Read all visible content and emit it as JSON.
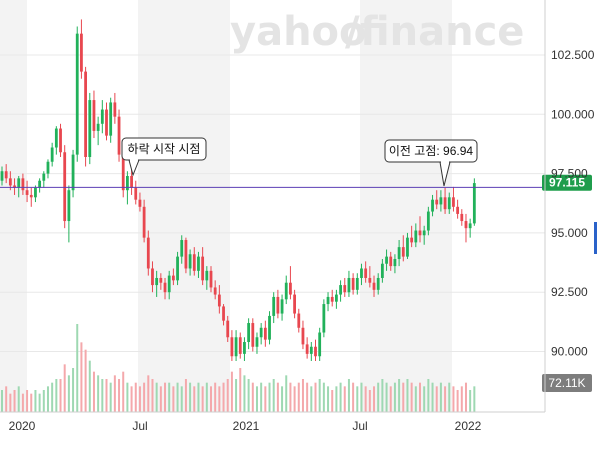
{
  "watermark": {
    "text_main": "yahoo",
    "text_slash": "/",
    "text_tail": "finance"
  },
  "colors": {
    "up": "#21b15a",
    "down": "#e8474f",
    "vol_up": "#9ed8b2",
    "vol_down": "#f4a8ab",
    "reference_line": "#5b3fb5",
    "price_tag": "#1f9d4c",
    "vol_tag": "#7d7d7d",
    "shade": "#f3f3f3",
    "side_marker": "#2a62c9"
  },
  "chart_data": {
    "type": "candlestick",
    "x_ticks": [
      "2020",
      "Jul",
      "2021",
      "Jul",
      "2022"
    ],
    "y_ticks": [
      "102.500",
      "100.000",
      "97.500",
      "95.000",
      "92.500",
      "90.000"
    ],
    "y_tick_values": [
      102.5,
      100.0,
      97.5,
      95.0,
      92.5,
      90.0
    ],
    "ylim": [
      88.7,
      104.7
    ],
    "last_price": 97.115,
    "last_price_label": "97.115",
    "reference_line_value": 96.94,
    "volume_label": "72.11K",
    "annotations": [
      {
        "text": "하락 시작 시점",
        "x_index": 29,
        "y": 97.2
      },
      {
        "text": "이전 고점: 96.94",
        "x_index": 108,
        "y": 96.94
      }
    ],
    "candles_start": "2019-11",
    "candles": [
      [
        97.2,
        97.8,
        97.0,
        97.6
      ],
      [
        97.6,
        97.9,
        97.1,
        97.3
      ],
      [
        97.3,
        97.6,
        96.8,
        97.0
      ],
      [
        97.0,
        97.3,
        96.6,
        96.9
      ],
      [
        96.9,
        97.4,
        96.5,
        97.3
      ],
      [
        97.3,
        97.5,
        96.6,
        96.8
      ],
      [
        96.8,
        97.2,
        96.3,
        96.6
      ],
      [
        96.6,
        96.9,
        96.1,
        96.5
      ],
      [
        96.5,
        97.0,
        96.3,
        96.9
      ],
      [
        96.9,
        97.3,
        96.7,
        97.2
      ],
      [
        97.2,
        97.6,
        96.9,
        97.5
      ],
      [
        97.5,
        98.1,
        97.3,
        98.0
      ],
      [
        98.0,
        98.8,
        97.8,
        98.6
      ],
      [
        98.6,
        99.5,
        98.3,
        99.4
      ],
      [
        99.4,
        99.6,
        98.2,
        98.4
      ],
      [
        98.4,
        98.7,
        95.2,
        95.5
      ],
      [
        95.5,
        97.0,
        94.6,
        96.8
      ],
      [
        96.8,
        98.5,
        96.5,
        98.3
      ],
      [
        98.3,
        103.7,
        98.0,
        103.4
      ],
      [
        103.4,
        104.0,
        101.5,
        101.8
      ],
      [
        101.8,
        102.0,
        97.8,
        98.2
      ],
      [
        98.2,
        100.9,
        97.9,
        100.6
      ],
      [
        100.6,
        101.0,
        99.0,
        99.3
      ],
      [
        99.3,
        99.9,
        98.7,
        99.6
      ],
      [
        99.6,
        100.6,
        99.2,
        100.2
      ],
      [
        100.2,
        100.5,
        98.9,
        99.1
      ],
      [
        99.1,
        100.7,
        98.8,
        100.5
      ],
      [
        100.5,
        100.9,
        99.6,
        99.9
      ],
      [
        99.9,
        100.2,
        98.0,
        98.3
      ],
      [
        98.3,
        98.5,
        96.5,
        96.8
      ],
      [
        96.8,
        97.6,
        96.2,
        97.4
      ],
      [
        97.4,
        97.7,
        96.6,
        96.9
      ],
      [
        96.9,
        97.2,
        96.2,
        96.4
      ],
      [
        96.4,
        96.7,
        95.9,
        96.1
      ],
      [
        96.1,
        96.4,
        94.6,
        94.8
      ],
      [
        94.8,
        95.1,
        93.2,
        93.5
      ],
      [
        93.5,
        93.8,
        92.5,
        92.8
      ],
      [
        92.8,
        93.4,
        92.3,
        93.1
      ],
      [
        93.1,
        93.3,
        92.6,
        92.9
      ],
      [
        92.9,
        93.1,
        92.2,
        92.5
      ],
      [
        92.5,
        93.4,
        92.2,
        93.2
      ],
      [
        93.2,
        93.5,
        92.8,
        93.0
      ],
      [
        93.0,
        94.2,
        92.8,
        94.0
      ],
      [
        94.0,
        94.9,
        93.7,
        94.7
      ],
      [
        94.7,
        94.8,
        93.3,
        93.5
      ],
      [
        93.5,
        94.3,
        93.2,
        94.1
      ],
      [
        94.1,
        94.4,
        93.2,
        93.4
      ],
      [
        93.4,
        94.2,
        93.1,
        94.0
      ],
      [
        94.0,
        94.4,
        92.8,
        93.0
      ],
      [
        93.0,
        93.6,
        92.6,
        93.4
      ],
      [
        93.4,
        93.6,
        92.5,
        92.7
      ],
      [
        92.7,
        93.0,
        92.2,
        92.4
      ],
      [
        92.4,
        92.8,
        91.6,
        91.9
      ],
      [
        91.9,
        92.0,
        91.1,
        91.3
      ],
      [
        91.3,
        91.5,
        90.4,
        90.6
      ],
      [
        90.6,
        90.9,
        89.6,
        89.8
      ],
      [
        89.8,
        90.9,
        89.6,
        90.6
      ],
      [
        90.6,
        90.8,
        89.7,
        89.9
      ],
      [
        89.9,
        90.6,
        89.6,
        90.4
      ],
      [
        90.4,
        91.4,
        90.1,
        91.2
      ],
      [
        91.2,
        91.4,
        90.0,
        90.2
      ],
      [
        90.2,
        90.8,
        89.9,
        90.6
      ],
      [
        90.6,
        91.2,
        90.3,
        91.0
      ],
      [
        91.0,
        91.3,
        90.2,
        90.5
      ],
      [
        90.5,
        91.7,
        90.3,
        91.5
      ],
      [
        91.5,
        92.5,
        91.2,
        92.3
      ],
      [
        92.3,
        92.6,
        91.4,
        91.6
      ],
      [
        91.6,
        92.4,
        91.3,
        92.2
      ],
      [
        92.2,
        93.2,
        92.0,
        92.9
      ],
      [
        92.9,
        93.6,
        92.2,
        92.4
      ],
      [
        92.4,
        92.6,
        91.4,
        91.6
      ],
      [
        91.6,
        91.8,
        90.8,
        91.0
      ],
      [
        91.0,
        91.3,
        90.1,
        90.3
      ],
      [
        90.3,
        90.6,
        89.7,
        89.9
      ],
      [
        89.9,
        90.4,
        89.6,
        90.2
      ],
      [
        90.2,
        90.5,
        89.6,
        89.8
      ],
      [
        89.8,
        91.0,
        89.6,
        90.8
      ],
      [
        90.8,
        92.2,
        90.6,
        92.0
      ],
      [
        92.0,
        92.5,
        91.7,
        92.3
      ],
      [
        92.3,
        92.6,
        91.9,
        92.1
      ],
      [
        92.1,
        92.6,
        91.8,
        92.4
      ],
      [
        92.4,
        93.0,
        92.1,
        92.8
      ],
      [
        92.8,
        93.1,
        92.3,
        92.5
      ],
      [
        92.5,
        93.4,
        92.3,
        93.1
      ],
      [
        93.1,
        93.3,
        92.4,
        92.6
      ],
      [
        92.6,
        93.3,
        92.4,
        93.1
      ],
      [
        93.1,
        93.7,
        92.8,
        93.5
      ],
      [
        93.5,
        93.8,
        92.9,
        93.1
      ],
      [
        93.1,
        93.6,
        92.7,
        92.9
      ],
      [
        92.9,
        93.2,
        92.3,
        92.6
      ],
      [
        92.6,
        93.3,
        92.4,
        93.1
      ],
      [
        93.1,
        93.9,
        92.9,
        93.7
      ],
      [
        93.7,
        94.3,
        93.4,
        94.0
      ],
      [
        94.0,
        94.2,
        93.4,
        93.6
      ],
      [
        93.6,
        94.1,
        93.3,
        93.9
      ],
      [
        93.9,
        94.7,
        93.6,
        94.4
      ],
      [
        94.4,
        94.9,
        93.8,
        94.0
      ],
      [
        94.0,
        95.0,
        93.9,
        94.8
      ],
      [
        94.8,
        95.3,
        94.4,
        94.6
      ],
      [
        94.6,
        95.4,
        94.4,
        95.1
      ],
      [
        95.1,
        95.7,
        94.6,
        94.9
      ],
      [
        94.9,
        95.3,
        94.5,
        95.1
      ],
      [
        95.1,
        96.1,
        94.9,
        95.9
      ],
      [
        95.9,
        96.6,
        95.7,
        96.4
      ],
      [
        96.4,
        96.8,
        96.0,
        96.2
      ],
      [
        96.2,
        96.8,
        95.9,
        96.5
      ],
      [
        96.5,
        96.9,
        95.8,
        96.0
      ],
      [
        96.0,
        96.7,
        95.8,
        96.5
      ],
      [
        96.5,
        96.94,
        95.9,
        96.1
      ],
      [
        96.1,
        96.4,
        95.6,
        95.8
      ],
      [
        95.8,
        96.0,
        95.3,
        95.5
      ],
      [
        95.5,
        95.8,
        94.6,
        95.2
      ],
      [
        95.2,
        95.6,
        94.8,
        95.4
      ],
      [
        95.4,
        97.3,
        95.3,
        97.1
      ]
    ],
    "volumes": [
      0.6,
      0.7,
      0.5,
      0.6,
      0.7,
      0.5,
      0.6,
      0.5,
      0.6,
      0.5,
      0.6,
      0.7,
      0.8,
      0.9,
      0.9,
      1.3,
      1.0,
      1.2,
      2.4,
      1.9,
      1.7,
      1.4,
      1.1,
      1.0,
      0.9,
      0.9,
      0.8,
      1.0,
      0.9,
      1.1,
      0.8,
      0.7,
      0.8,
      0.7,
      0.8,
      1.0,
      0.9,
      0.8,
      0.7,
      0.8,
      0.8,
      0.7,
      0.8,
      0.7,
      0.9,
      0.8,
      0.7,
      0.8,
      0.7,
      0.8,
      0.7,
      0.8,
      0.7,
      0.8,
      0.9,
      1.1,
      0.9,
      1.2,
      1.0,
      0.9,
      0.8,
      0.7,
      0.8,
      0.7,
      0.8,
      0.9,
      0.8,
      0.7,
      1.0,
      0.8,
      0.7,
      0.8,
      0.9,
      0.8,
      0.7,
      0.8,
      0.9,
      0.8,
      0.7,
      0.6,
      0.7,
      0.8,
      0.7,
      0.9,
      0.8,
      0.7,
      0.8,
      0.7,
      0.6,
      0.7,
      0.8,
      0.9,
      0.8,
      0.7,
      0.8,
      0.9,
      0.8,
      0.9,
      0.8,
      0.7,
      0.8,
      0.7,
      0.9,
      0.8,
      0.7,
      0.8,
      0.7,
      0.8,
      0.7,
      0.6,
      0.7,
      0.8,
      0.6,
      0.7
    ]
  }
}
